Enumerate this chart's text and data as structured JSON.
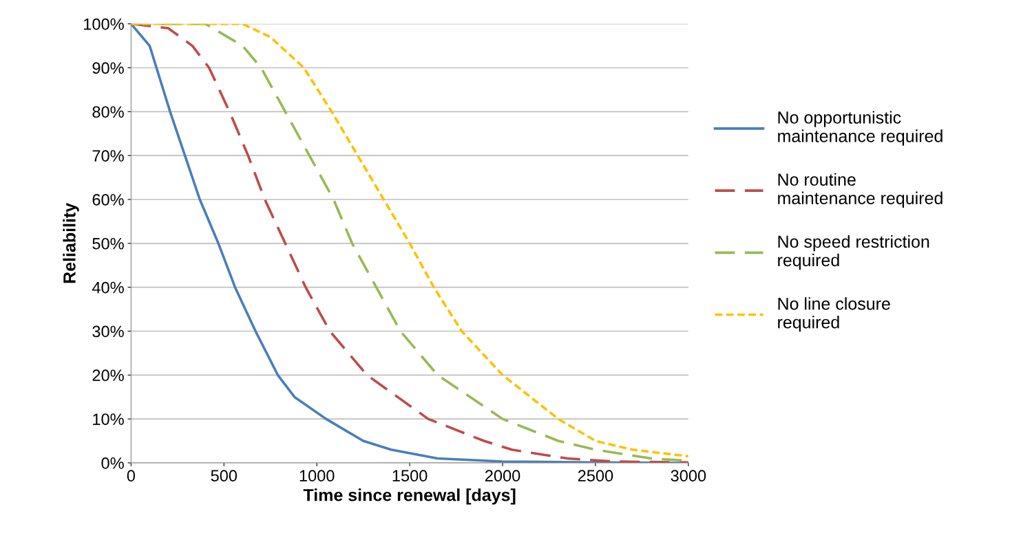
{
  "chart_data": {
    "type": "line",
    "xlabel": "Time since renewal [days]",
    "ylabel": "Reliability",
    "xlim": [
      0,
      3000
    ],
    "xticks": [
      0,
      500,
      1000,
      1500,
      2000,
      2500,
      3000
    ],
    "ylim": [
      0,
      100
    ],
    "yticks": [
      {
        "value": 0,
        "label": "0%"
      },
      {
        "value": 10,
        "label": "10%"
      },
      {
        "value": 20,
        "label": "20%"
      },
      {
        "value": 30,
        "label": "30%"
      },
      {
        "value": 40,
        "label": "40%"
      },
      {
        "value": 50,
        "label": "50%"
      },
      {
        "value": 60,
        "label": "60%"
      },
      {
        "value": 70,
        "label": "70%"
      },
      {
        "value": 80,
        "label": "80%"
      },
      {
        "value": 90,
        "label": "90%"
      },
      {
        "value": 100,
        "label": "100%"
      }
    ],
    "grid": "y",
    "legend": "right",
    "marker": "none",
    "series": [
      {
        "name": "No opportunistic\nmaintenance required",
        "color": "#4a7ebb",
        "line_style": "solid",
        "x": [
          0,
          100,
          210,
          290,
          370,
          470,
          560,
          670,
          790,
          880,
          1050,
          1250,
          1400,
          1650,
          2000,
          2500,
          3000
        ],
        "values": [
          100,
          95,
          80,
          70,
          60,
          50,
          40,
          30,
          20,
          15,
          10,
          5,
          3,
          1,
          0.3,
          0.1,
          0
        ]
      },
      {
        "name": "No routine\nmaintenance required",
        "color": "#be4b48",
        "line_style": "dashed",
        "x": [
          0,
          200,
          330,
          420,
          530,
          630,
          720,
          830,
          940,
          1070,
          1270,
          1600,
          1900,
          2050,
          2350,
          2600,
          3000
        ],
        "values": [
          100,
          99,
          95,
          90,
          80,
          70,
          60,
          50,
          40,
          30,
          20,
          10,
          5,
          3,
          1,
          0.3,
          0.1
        ]
      },
      {
        "name": "No speed restriction\nrequired",
        "color": "#98b954",
        "line_style": "dashed",
        "x": [
          0,
          400,
          600,
          700,
          830,
          960,
          1090,
          1190,
          1320,
          1450,
          1650,
          2000,
          2300,
          2500,
          2800,
          3000
        ],
        "values": [
          100,
          100,
          95,
          90,
          80,
          70,
          60,
          50,
          40,
          30,
          20,
          10,
          5,
          3,
          1,
          0.5
        ]
      },
      {
        "name": "No line closure\nrequired",
        "color": "#ffc000",
        "line_style": "dotted",
        "x": [
          0,
          600,
          750,
          930,
          1080,
          1220,
          1360,
          1500,
          1630,
          1780,
          2000,
          2300,
          2500,
          2700,
          3000
        ],
        "values": [
          100,
          100,
          97,
          90,
          80,
          70,
          60,
          50,
          40,
          30,
          20,
          10,
          5,
          3,
          1.5
        ]
      }
    ]
  }
}
